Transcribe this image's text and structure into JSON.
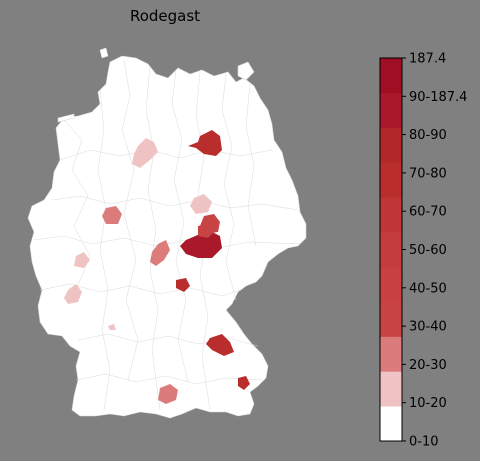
{
  "title": "Rodegast",
  "legend": {
    "top_value": "187.4",
    "labels": [
      "90-187.4",
      "80-90",
      "70-80",
      "60-70",
      "50-60",
      "40-50",
      "30-40",
      "20-30",
      "10-20",
      "0-10"
    ],
    "bins": [
      {
        "label": "0-10",
        "color": "#ffffff"
      },
      {
        "label": "10-20",
        "color": "#efc3c3"
      },
      {
        "label": "20-30",
        "color": "#dc7b7b"
      },
      {
        "label": "30-40",
        "color": "#c84444"
      },
      {
        "label": "40-50",
        "color": "#c84040"
      },
      {
        "label": "50-60",
        "color": "#c53c3c"
      },
      {
        "label": "60-70",
        "color": "#c03535"
      },
      {
        "label": "70-80",
        "color": "#b92d2d"
      },
      {
        "label": "80-90",
        "color": "#b22727"
      },
      {
        "label": "90-187.4",
        "color": "#a9192b"
      },
      {
        "label": "187.4",
        "color": "#9e0f23"
      }
    ]
  },
  "colors": {
    "background": "#808080",
    "country_fill": "#ffffff",
    "border_lines": "#cfcfcf"
  },
  "highlighted_regions": [
    {
      "area": "north-east (Brandenburg)",
      "bin": "70-80"
    },
    {
      "area": "Lower Saxony",
      "bin": "10-20"
    },
    {
      "area": "North Rhine-Westphalia",
      "bin": "20-30"
    },
    {
      "area": "Saxony-Anhalt / Saxony",
      "bin": "90-187.4"
    },
    {
      "area": "Thuringia",
      "bin": "30-40"
    },
    {
      "area": "Hesse",
      "bin": "20-30"
    },
    {
      "area": "Rhineland-Palatinate",
      "bin": "10-20"
    },
    {
      "area": "Saarland",
      "bin": "10-20"
    },
    {
      "area": "Franconia",
      "bin": "70-80"
    },
    {
      "area": "Bavaria east",
      "bin": "70-80"
    },
    {
      "area": "Bavaria south-east",
      "bin": "70-80"
    },
    {
      "area": "Baden-Württemberg south",
      "bin": "20-30"
    }
  ]
}
